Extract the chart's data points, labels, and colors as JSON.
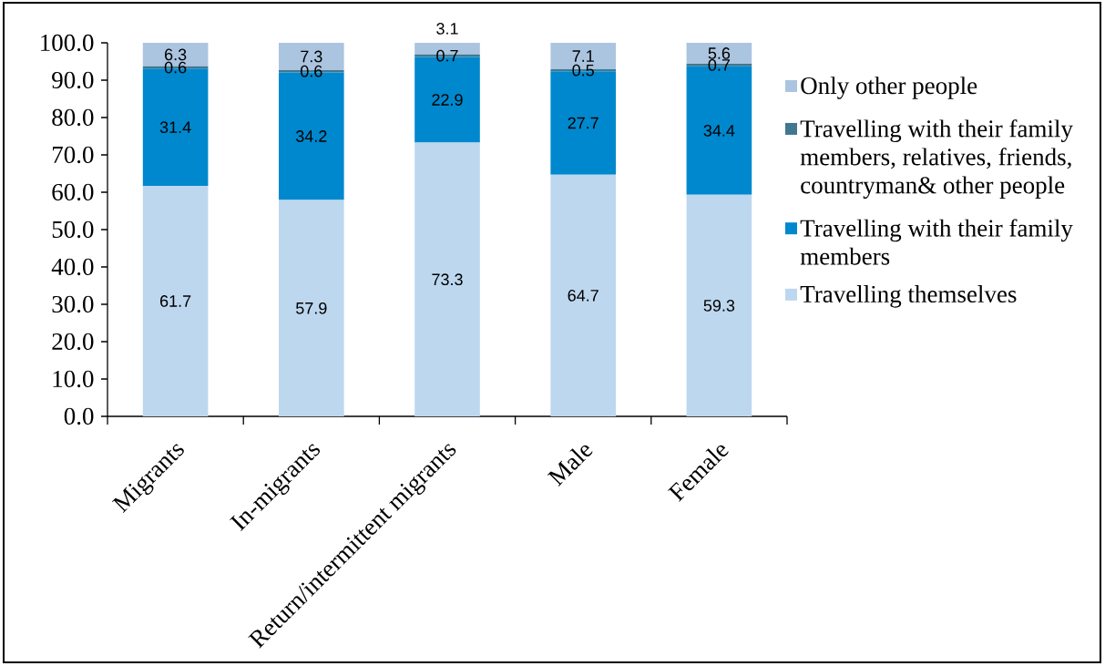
{
  "chart_data": {
    "type": "bar",
    "stacked": true,
    "legend": "right",
    "data_labels": true,
    "categories": [
      "Migrants",
      "In-migrants",
      "Return/intermittent migrants",
      "Male",
      "Female"
    ],
    "series": [
      {
        "name": "Travelling themselves",
        "color": "#bdd7ee",
        "values": [
          61.7,
          57.9,
          73.3,
          64.7,
          59.3
        ]
      },
      {
        "name": "Travelling with their family members",
        "color": "#0088ce",
        "values": [
          31.4,
          34.2,
          22.9,
          27.7,
          34.4
        ]
      },
      {
        "name": "Travelling with their family members, relatives, friends, countryman& other people",
        "color": "#41788f",
        "values": [
          0.6,
          0.6,
          0.7,
          0.5,
          0.7
        ]
      },
      {
        "name": "Only other people",
        "color": "#abc4e0",
        "values": [
          6.3,
          7.3,
          3.1,
          7.1,
          5.6
        ]
      }
    ],
    "ylim": [
      0,
      100
    ],
    "yticks": [
      {
        "value": 0,
        "label": "0.0"
      },
      {
        "value": 10,
        "label": "10.0"
      },
      {
        "value": 20,
        "label": "20.0"
      },
      {
        "value": 30,
        "label": "30.0"
      },
      {
        "value": 40,
        "label": "40.0"
      },
      {
        "value": 50,
        "label": "50.0"
      },
      {
        "value": 60,
        "label": "60.0"
      },
      {
        "value": 70,
        "label": "70.0"
      },
      {
        "value": 80,
        "label": "80.0"
      },
      {
        "value": 90,
        "label": "90.0"
      },
      {
        "value": 100,
        "label": "100.0"
      }
    ]
  }
}
